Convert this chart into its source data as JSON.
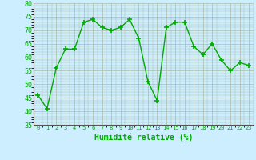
{
  "x": [
    0,
    1,
    2,
    3,
    4,
    5,
    6,
    7,
    8,
    9,
    10,
    11,
    12,
    13,
    14,
    15,
    16,
    17,
    18,
    19,
    20,
    21,
    22,
    23
  ],
  "y": [
    46,
    41,
    56,
    63,
    63,
    73,
    74,
    71,
    70,
    71,
    74,
    67,
    51,
    44,
    71,
    73,
    73,
    64,
    61,
    65,
    59,
    55,
    58,
    57
  ],
  "line_color": "#00aa00",
  "marker": "+",
  "marker_size": 5,
  "bg_color": "#cceeff",
  "grid_color": "#aabbaa",
  "xlabel": "Humidité relative (%)",
  "xlabel_color": "#00aa00",
  "tick_color": "#00aa00",
  "ylim": [
    35,
    80
  ],
  "xlim": [
    -0.5,
    23.5
  ],
  "yticks": [
    35,
    40,
    45,
    50,
    55,
    60,
    65,
    70,
    75,
    80
  ],
  "xticks": [
    0,
    1,
    2,
    3,
    4,
    5,
    6,
    7,
    8,
    9,
    10,
    11,
    12,
    13,
    14,
    15,
    16,
    17,
    18,
    19,
    20,
    21,
    22,
    23
  ]
}
